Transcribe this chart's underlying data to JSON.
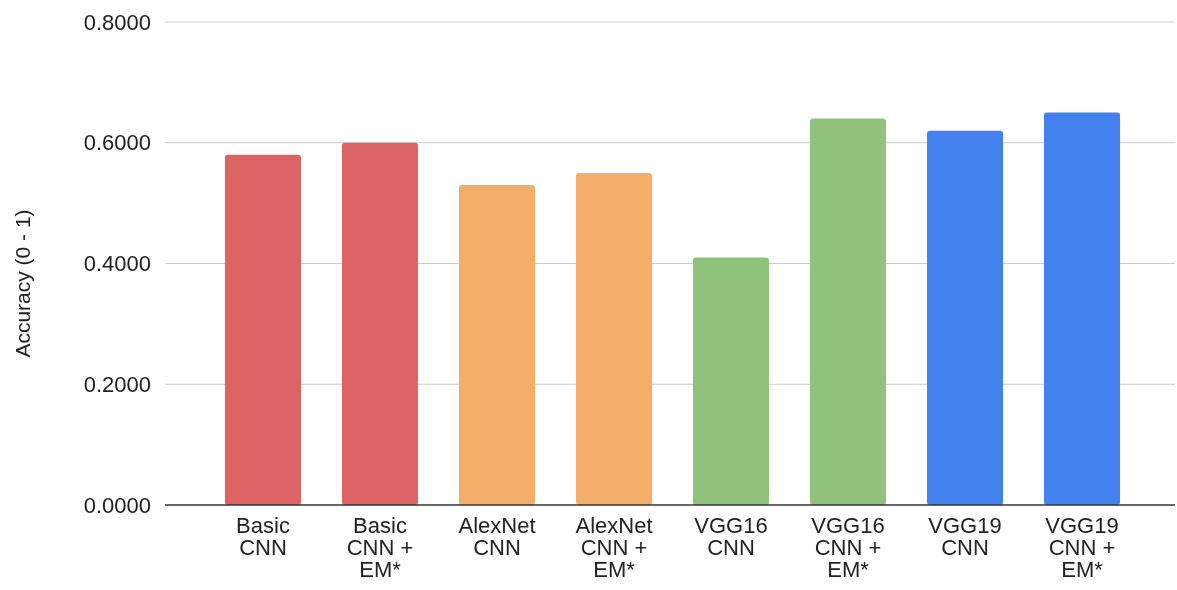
{
  "chart_data": {
    "type": "bar",
    "ylabel": "Accuracy (0 - 1)",
    "categories": [
      "Basic CNN",
      "Basic CNN + EM*",
      "AlexNet CNN",
      "AlexNet CNN + EM*",
      "VGG16 CNN",
      "VGG16 CNN + EM*",
      "VGG19 CNN",
      "VGG19 CNN + EM*"
    ],
    "values": [
      0.58,
      0.6,
      0.53,
      0.55,
      0.41,
      0.64,
      0.62,
      0.65
    ],
    "colors": [
      "#dd6464",
      "#dd6464",
      "#f4ae6a",
      "#f4ae6a",
      "#8fc27a",
      "#8fc27a",
      "#4382ee",
      "#4382ee"
    ],
    "ylim": [
      0,
      0.8
    ],
    "yticks": [
      {
        "value": 0,
        "label": "0.0000"
      },
      {
        "value": 0.2,
        "label": "0.2000"
      },
      {
        "value": 0.4,
        "label": "0.4000"
      },
      {
        "value": 0.6,
        "label": "0.6000"
      },
      {
        "value": 0.8,
        "label": "0.8000"
      }
    ],
    "grid": "y"
  }
}
